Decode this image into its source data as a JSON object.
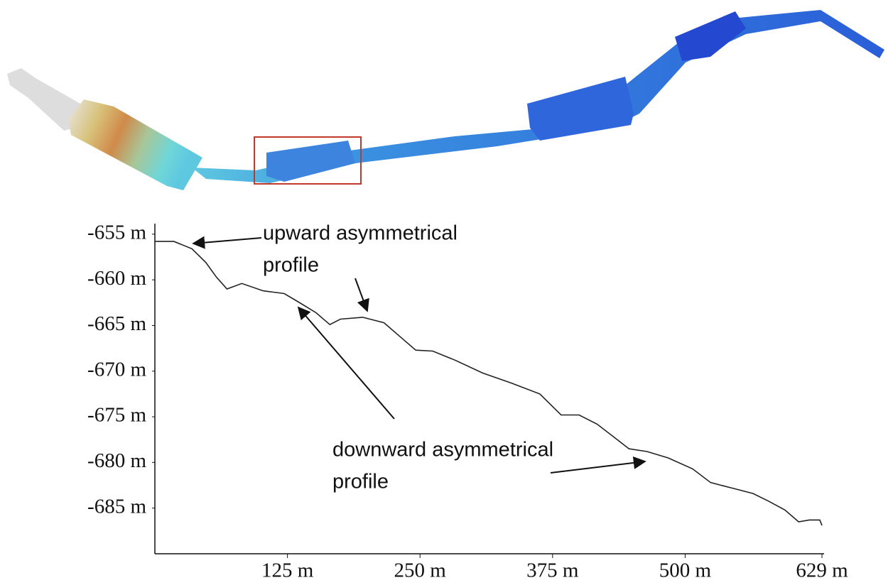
{
  "chart_data": {
    "type": "line",
    "x": [
      0,
      18,
      35,
      48,
      58,
      68,
      82,
      102,
      122,
      135,
      152,
      165,
      175,
      196,
      216,
      232,
      246,
      262,
      283,
      309,
      336,
      363,
      383,
      400,
      417,
      437,
      447,
      464,
      484,
      507,
      524,
      544,
      564,
      578,
      594,
      607,
      617,
      627,
      629
    ],
    "series": [
      {
        "color": "#222222",
        "values": [
          -655.8,
          -655.8,
          -656.6,
          -658.1,
          -659.7,
          -661.0,
          -660.4,
          -661.2,
          -661.5,
          -662.4,
          -663.6,
          -664.9,
          -664.3,
          -664.1,
          -664.7,
          -666.3,
          -667.7,
          -667.8,
          -668.8,
          -670.2,
          -671.3,
          -672.5,
          -674.8,
          -674.8,
          -675.8,
          -677.6,
          -678.5,
          -678.8,
          -679.5,
          -680.7,
          -682.2,
          -682.8,
          -683.4,
          -684.2,
          -685.2,
          -686.5,
          -686.3,
          -686.3,
          -686.9
        ]
      }
    ],
    "xlim": [
      0,
      629
    ],
    "ylim": [
      -690,
      -654
    ],
    "xticks": [
      {
        "value": 125,
        "label": "125 m"
      },
      {
        "value": 250,
        "label": "250 m"
      },
      {
        "value": 375,
        "label": "375 m"
      },
      {
        "value": 500,
        "label": "500 m"
      },
      {
        "value": 629,
        "label": "629 m"
      }
    ],
    "yticks": [
      {
        "value": -655,
        "label": "-655 m"
      },
      {
        "value": -660,
        "label": "-660 m"
      },
      {
        "value": -665,
        "label": "-665 m"
      },
      {
        "value": -670,
        "label": "-670 m"
      },
      {
        "value": -675,
        "label": "-675 m"
      },
      {
        "value": -680,
        "label": "-680 m"
      },
      {
        "value": -685,
        "label": "-685 m"
      }
    ],
    "annotations": [
      {
        "lines": [
          "upward asymmetrical",
          "profile"
        ]
      },
      {
        "lines": [
          "downward asymmetrical",
          "profile"
        ]
      }
    ]
  }
}
